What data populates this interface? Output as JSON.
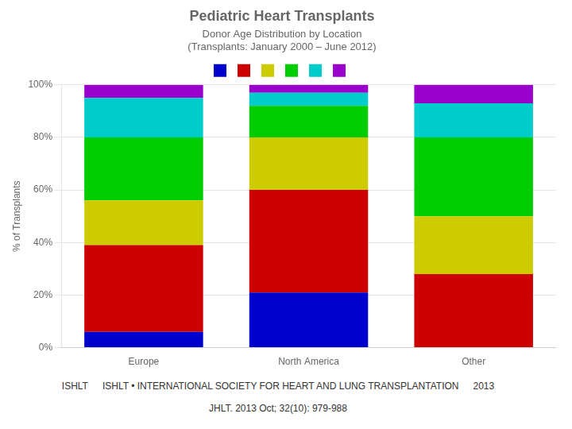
{
  "chart_data": {
    "type": "bar",
    "stacked": true,
    "title": "Pediatric Heart Transplants",
    "subtitle": [
      "Donor Age Distribution by Location",
      "(Transplants: January 2000 – June 2012)"
    ],
    "categories": [
      "Europe",
      "North America",
      "Other"
    ],
    "series": [
      {
        "color": "#0000cc",
        "values": [
          6,
          21,
          0
        ]
      },
      {
        "color": "#cc0000",
        "values": [
          33,
          39,
          28
        ]
      },
      {
        "color": "#cccc00",
        "values": [
          17,
          20,
          22
        ]
      },
      {
        "color": "#00cc00",
        "values": [
          24,
          12,
          30
        ]
      },
      {
        "color": "#00cccc",
        "values": [
          15,
          5,
          13
        ]
      },
      {
        "color": "#9900cc",
        "values": [
          5,
          3,
          7
        ]
      }
    ],
    "ylabel": "% of Transplants",
    "ylim": [
      0,
      100
    ],
    "yticks": [
      {
        "value": 0,
        "label": "0%"
      },
      {
        "value": 20,
        "label": "20%"
      },
      {
        "value": 40,
        "label": "40%"
      },
      {
        "value": 60,
        "label": "60%"
      },
      {
        "value": 80,
        "label": "80%"
      },
      {
        "value": 100,
        "label": "100%"
      }
    ],
    "grid": true,
    "legend": "top",
    "annotations": [
      "ISHLT",
      "ISHLT • INTERNATIONAL SOCIETY FOR HEART AND LUNG TRANSPLANTATION",
      "2013",
      "JHLT. 2013 Oct; 32(10): 979-988"
    ]
  }
}
